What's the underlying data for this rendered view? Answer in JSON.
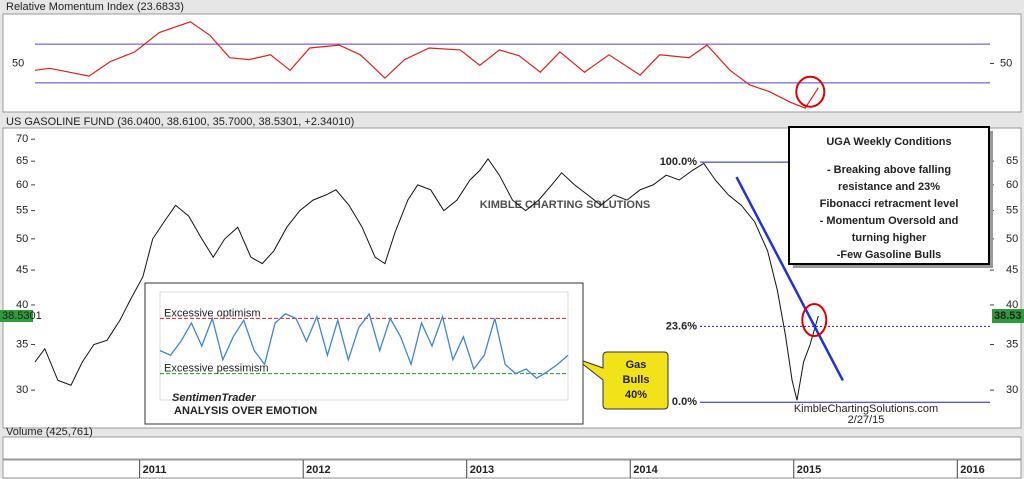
{
  "chart_data": [
    {
      "type": "line",
      "title": "Relative Momentum Index (23.6833)",
      "color": "#e0201b",
      "x": [
        2010.36,
        2010.45,
        2010.57,
        2010.69,
        2010.82,
        2010.97,
        2011.12,
        2011.31,
        2011.43,
        2011.55,
        2011.67,
        2011.8,
        2011.92,
        2012.04,
        2012.22,
        2012.35,
        2012.5,
        2012.62,
        2012.77,
        2012.96,
        2013.08,
        2013.2,
        2013.32,
        2013.45,
        2013.57,
        2013.72,
        2013.87,
        2014.06,
        2014.18,
        2014.36,
        2014.47,
        2014.61,
        2014.73,
        2014.85,
        2014.98,
        2015.07,
        2015.15
      ],
      "values": [
        43,
        45,
        41,
        37,
        52,
        62,
        82,
        93,
        79,
        56,
        54,
        59,
        43,
        66,
        69,
        59,
        35,
        54,
        66,
        64,
        48,
        64,
        58,
        41,
        62,
        41,
        59,
        38,
        59,
        56,
        69,
        43,
        28,
        21,
        10,
        4,
        25
      ],
      "xlim": [
        2010.36,
        2016.2
      ],
      "ylim": [
        0,
        100
      ],
      "yticks": [
        50
      ],
      "reference_lines": [
        70,
        30
      ],
      "reference_color": "#5a3fc0"
    },
    {
      "type": "line",
      "title": "US GASOLINE FUND (36.0400, 38.6100, 35.7000, 38.5301, +2.34010)",
      "color": "#111111",
      "log": true,
      "x": [
        2010.36,
        2010.42,
        2010.5,
        2010.58,
        2010.65,
        2010.72,
        2010.8,
        2010.88,
        2010.95,
        2011.02,
        2011.08,
        2011.15,
        2011.22,
        2011.3,
        2011.38,
        2011.45,
        2011.52,
        2011.6,
        2011.68,
        2011.75,
        2011.82,
        2011.9,
        2011.98,
        2012.06,
        2012.14,
        2012.2,
        2012.28,
        2012.36,
        2012.44,
        2012.5,
        2012.56,
        2012.64,
        2012.7,
        2012.78,
        2012.86,
        2012.94,
        2013.02,
        2013.08,
        2013.13,
        2013.2,
        2013.28,
        2013.36,
        2013.44,
        2013.52,
        2013.58,
        2013.66,
        2013.74,
        2013.82,
        2013.9,
        2013.98,
        2014.06,
        2014.14,
        2014.22,
        2014.3,
        2014.38,
        2014.45,
        2014.52,
        2014.6,
        2014.68,
        2014.76,
        2014.84,
        2014.9,
        2014.95,
        2014.99,
        2015.02,
        2015.06,
        2015.1,
        2015.15
      ],
      "values": [
        33,
        34.5,
        31,
        30.5,
        33,
        35,
        35.5,
        38,
        41,
        44,
        50,
        53,
        56,
        54,
        50,
        47,
        50,
        52,
        47,
        46,
        48,
        52,
        55,
        57,
        58,
        59,
        56,
        52,
        47,
        46,
        51,
        57,
        60,
        59,
        55,
        57,
        61,
        63,
        65.5,
        62,
        57,
        55,
        57,
        60,
        62.5,
        60,
        58,
        56,
        58,
        57,
        59,
        60,
        62,
        61,
        63,
        64.5,
        61,
        58,
        56,
        53,
        48,
        42,
        36,
        31,
        29,
        33,
        35,
        38.5301
      ],
      "value_labels_last": [
        "38.5301",
        "38.53"
      ],
      "xlim": [
        2010.36,
        2016.2
      ],
      "xticks": [
        2011,
        2012,
        2013,
        2014,
        2015,
        2016
      ],
      "ylim": [
        26.4,
        72.7
      ],
      "yticks": [
        30,
        35,
        40,
        45,
        50,
        55,
        60,
        65,
        70
      ],
      "y2ticks": [
        30,
        35,
        40,
        45,
        50,
        55,
        60,
        65
      ],
      "fib_levels": [
        {
          "value": 64.8,
          "label": "100.0%"
        },
        {
          "value": 37.2,
          "label": "23.6%"
        },
        {
          "value": 28.8,
          "label": "0.0%"
        }
      ],
      "fib_color": "#1d1dcf",
      "trendline": {
        "x": [
          2014.65,
          2015.3
        ],
        "y": [
          61.6,
          31.0
        ],
        "color": "#2230d8"
      },
      "watermark": "KIMBLE CHARTING SOLUTIONS",
      "box": {
        "title": "UGA Weekly Conditions",
        "lines": [
          "- Breaking above falling",
          "resistance and 23%",
          "Fibonacci retracment level",
          "- Momentum Oversold and",
          "turning higher",
          "-Few Gasoline Bulls"
        ]
      },
      "callout": [
        "Gas",
        "Bulls",
        "40%"
      ],
      "source": "KimbleChartingSolutions.com",
      "date": "2/27/15",
      "volume_title": "Volume (425,761)"
    },
    {
      "type": "line",
      "title": "SentimenTrader",
      "subtitle": "ANALYSIS OVER EMOTION",
      "color": "#3f86d0",
      "values": [
        45,
        40,
        55,
        75,
        50,
        80,
        35,
        60,
        78,
        45,
        30,
        75,
        85,
        80,
        55,
        82,
        40,
        78,
        35,
        70,
        85,
        45,
        80,
        60,
        30,
        75,
        50,
        82,
        35,
        60,
        25,
        40,
        80,
        30,
        20,
        25,
        15,
        22,
        30,
        40
      ],
      "ylim": [
        0,
        100
      ],
      "bands": [
        {
          "value": 80,
          "label": "Excessive optimism",
          "color": "#e02020"
        },
        {
          "value": 20,
          "label": "Excessive pessimism",
          "color": "#1a9a2a"
        }
      ]
    }
  ]
}
